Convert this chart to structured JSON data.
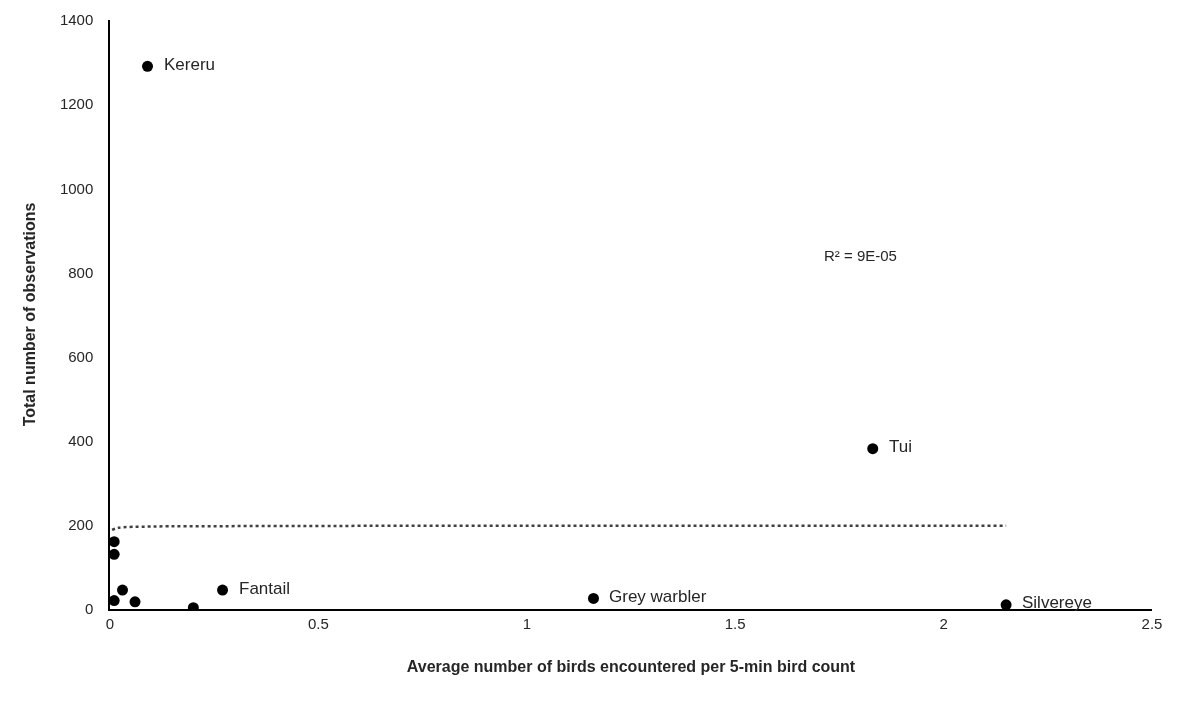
{
  "chart_data": {
    "type": "scatter",
    "xlabel": "Average number of birds encountered per 5-min bird count",
    "ylabel": "Total number of observations",
    "x": [
      0.09,
      1.83,
      1.16,
      2.15,
      0.27,
      0.01,
      0.01,
      0.03,
      0.01,
      0.06,
      0.2
    ],
    "series": [
      {
        "color": "#000000",
        "values": [
          1290,
          381,
          25,
          10,
          45,
          160,
          130,
          45,
          20,
          17,
          3
        ]
      },
      {
        "type": "line",
        "line_style": "dotted",
        "marker": "none",
        "color": "#404040",
        "x": [
          0.005,
          0.02,
          0.1,
          0.3,
          1,
          2.15
        ],
        "values": [
          188,
          193,
          196,
          197,
          198,
          198
        ]
      }
    ],
    "annotations": [
      {
        "text": "Kereru",
        "x": 0.09,
        "y": 1290
      },
      {
        "text": "Tui",
        "x": 1.83,
        "y": 381
      },
      {
        "text": "Grey warbler",
        "x": 1.16,
        "y": 25
      },
      {
        "text": "Silvereye",
        "x": 2.15,
        "y": 10
      },
      {
        "text": "Fantail",
        "x": 0.27,
        "y": 45
      },
      "R² = 9E-05"
    ],
    "marker": "circle",
    "xlim": [
      0,
      2.5
    ],
    "xticks": [
      0,
      0.5,
      1,
      1.5,
      2,
      2.5
    ],
    "ylim": [
      0,
      1400
    ],
    "yticks": [
      0,
      200,
      400,
      600,
      800,
      1000,
      1200,
      1400
    ],
    "tick_labels": true
  }
}
